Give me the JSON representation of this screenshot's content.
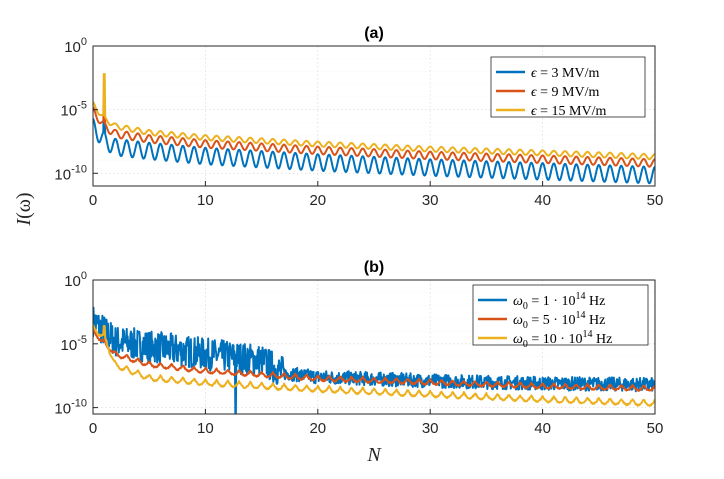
{
  "chart_data": [
    {
      "type": "line",
      "title": "(a)",
      "xlabel": "",
      "ylabel": "I(ω)",
      "xlim": [
        0,
        50
      ],
      "ylim_log10": [
        -11,
        0
      ],
      "yscale": "log",
      "xticks": [
        "0",
        "10",
        "20",
        "30",
        "40",
        "50"
      ],
      "yticks": [
        {
          "base": "10",
          "exp": "0"
        },
        {
          "base": "10",
          "exp": "-5"
        },
        {
          "base": "10",
          "exp": "-10"
        }
      ],
      "legend_position": "top-right",
      "series": [
        {
          "name": "ε = 3 MV/m",
          "color": "#0072BD",
          "log10_envelope_upper": [
            [
              0,
              -5.7
            ],
            [
              1,
              -6.8
            ],
            [
              2,
              -7.3
            ],
            [
              5,
              -7.6
            ],
            [
              10,
              -8.0
            ],
            [
              20,
              -8.5
            ],
            [
              30,
              -8.9
            ],
            [
              40,
              -9.2
            ],
            [
              50,
              -9.5
            ]
          ],
          "osc_depth_log10": 1.3,
          "period": 1.0,
          "spike_at": 1,
          "spike_log10": -4.5
        },
        {
          "name": "ε = 9 MV/m",
          "color": "#D95319",
          "log10_envelope_upper": [
            [
              0,
              -4.8
            ],
            [
              1,
              -6.0
            ],
            [
              2,
              -6.6
            ],
            [
              5,
              -7.0
            ],
            [
              10,
              -7.4
            ],
            [
              20,
              -7.9
            ],
            [
              30,
              -8.3
            ],
            [
              40,
              -8.6
            ],
            [
              50,
              -8.9
            ]
          ],
          "osc_depth_log10": 0.6,
          "period": 1.0,
          "spike_at": 1,
          "spike_log10": -4.0
        },
        {
          "name": "ε = 15 MV/m",
          "color": "#EDB120",
          "log10_envelope_upper": [
            [
              0,
              -4.4
            ],
            [
              1,
              -5.5
            ],
            [
              2,
              -6.1
            ],
            [
              5,
              -6.6
            ],
            [
              10,
              -7.0
            ],
            [
              20,
              -7.5
            ],
            [
              30,
              -7.9
            ],
            [
              40,
              -8.2
            ],
            [
              50,
              -8.5
            ]
          ],
          "osc_depth_log10": 0.4,
          "period": 1.0,
          "spike_at": 1,
          "spike_log10": -2.2
        }
      ]
    },
    {
      "type": "line",
      "title": "(b)",
      "xlabel": "N",
      "ylabel": "I(ω)",
      "xlim": [
        0,
        50
      ],
      "ylim_log10": [
        -10.5,
        0
      ],
      "yscale": "log",
      "xticks": [
        "0",
        "10",
        "20",
        "30",
        "40",
        "50"
      ],
      "yticks": [
        {
          "base": "10",
          "exp": "0"
        },
        {
          "base": "10",
          "exp": "-5"
        },
        {
          "base": "10",
          "exp": "-10"
        }
      ],
      "legend_position": "top-right",
      "series": [
        {
          "name": "ω0 = 1 · 10^14 Hz",
          "color": "#0072BD",
          "log10_trend": [
            [
              0,
              -3.2
            ],
            [
              2,
              -4.8
            ],
            [
              5,
              -5.2
            ],
            [
              10,
              -5.8
            ],
            [
              15,
              -6.3
            ],
            [
              17,
              -7.3
            ],
            [
              20,
              -7.6
            ],
            [
              30,
              -7.9
            ],
            [
              40,
              -8.1
            ],
            [
              50,
              -8.2
            ]
          ],
          "noise_log10": 0.9,
          "dip_at": 12.7,
          "dip_log10": -10.5
        },
        {
          "name": "ω0 = 5 · 10^14 Hz",
          "color": "#D95319",
          "log10_trend": [
            [
              0,
              -3.8
            ],
            [
              2,
              -5.6
            ],
            [
              5,
              -6.4
            ],
            [
              10,
              -6.9
            ],
            [
              20,
              -7.5
            ],
            [
              30,
              -7.8
            ],
            [
              40,
              -8.1
            ],
            [
              50,
              -8.3
            ]
          ],
          "noise_log10": 0.25,
          "period": 1.0
        },
        {
          "name": "ω0 = 10 · 10^14 Hz",
          "color": "#EDB120",
          "log10_trend": [
            [
              0,
              -3.5
            ],
            [
              1,
              -4.2
            ],
            [
              2,
              -6.4
            ],
            [
              5,
              -7.4
            ],
            [
              10,
              -7.8
            ],
            [
              20,
              -8.3
            ],
            [
              30,
              -8.7
            ],
            [
              40,
              -9.1
            ],
            [
              50,
              -9.4
            ]
          ],
          "noise_log10": 0.3,
          "period": 1.0,
          "spike_at": 1,
          "spike_log10": -3.6
        }
      ]
    }
  ],
  "legend_a": [
    {
      "pre": "ϵ",
      "text": " = 3 MV/m"
    },
    {
      "pre": "ϵ",
      "text": " = 9 MV/m"
    },
    {
      "pre": "ϵ",
      "text": " = 15 MV/m"
    }
  ],
  "legend_b": [
    {
      "pre": "ω",
      "sub": "0",
      "text": " = 1 · 10",
      "sup": "14",
      "post": " Hz"
    },
    {
      "pre": "ω",
      "sub": "0",
      "text": " = 5 · 10",
      "sup": "14",
      "post": " Hz"
    },
    {
      "pre": "ω",
      "sub": "0",
      "text": " = 10 · 10",
      "sup": "14",
      "post": " Hz"
    }
  ],
  "ylabel_shared": {
    "pre": "I",
    "post": "(ω)"
  },
  "xlabel_b": "N"
}
